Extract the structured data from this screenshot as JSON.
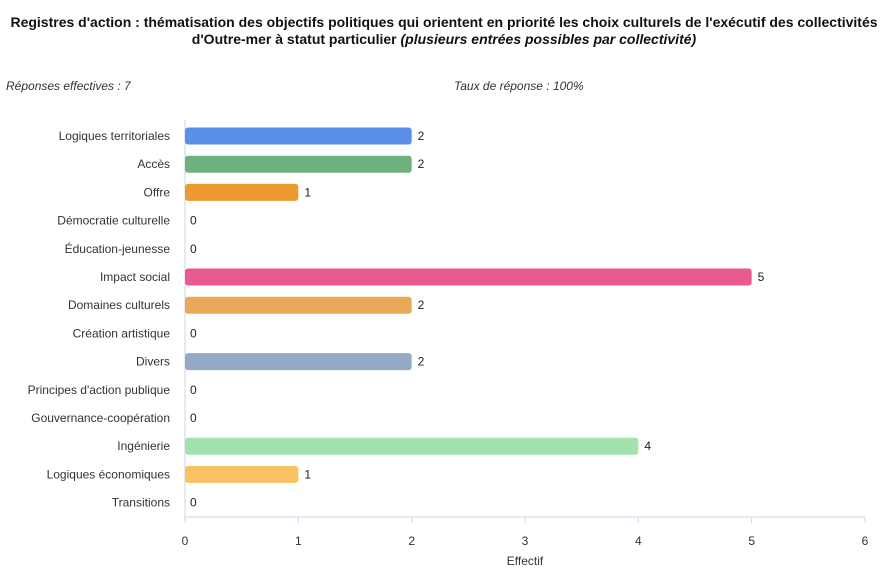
{
  "title": {
    "main": "Registres d'action : thématisation des objectifs politiques qui orientent en priorité les choix culturels de l'exécutif des collectivités d'Outre-mer à statut particulier",
    "italic": "(plusieurs entrées possibles par collectivité)"
  },
  "responses_text": "Réponses effectives : 7",
  "rate_text": "Taux de réponse : 100%",
  "chart_data": {
    "type": "bar",
    "orientation": "horizontal",
    "categories": [
      "Logiques territoriales",
      "Accès",
      "Offre",
      "Démocratie culturelle",
      "Éducation-jeunesse",
      "Impact social",
      "Domaines culturels",
      "Création artistique",
      "Divers",
      "Principes d'action publique",
      "Gouvernance-coopération",
      "Ingénierie",
      "Logiques économiques",
      "Transitions"
    ],
    "values": [
      2,
      2,
      1,
      0,
      0,
      5,
      2,
      0,
      2,
      0,
      0,
      4,
      1,
      0
    ],
    "colors": [
      "#5b8ee6",
      "#6fb07f",
      "#ee9a33",
      "#bbbbbb",
      "#bbbbbb",
      "#e85a90",
      "#e8aa58",
      "#bbbbbb",
      "#95a8c6",
      "#bbbbbb",
      "#bbbbbb",
      "#a3e2ad",
      "#fbc263",
      "#bbbbbb"
    ],
    "xlabel": "Effectif",
    "ylabel": "",
    "xlim": [
      0,
      6
    ],
    "xticks": [
      0,
      1,
      2,
      3,
      4,
      5,
      6
    ],
    "data_labels": true,
    "grid": false,
    "legend": "none"
  }
}
